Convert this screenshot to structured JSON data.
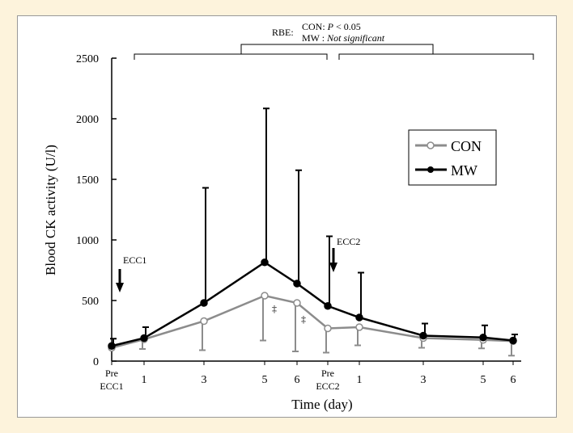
{
  "chart_data": {
    "type": "line",
    "title": "",
    "xlabel": "Time (day)",
    "ylabel": "Blood CK activity (U/l)",
    "ylim": [
      0,
      2500
    ],
    "yticks": [
      0,
      500,
      1000,
      1500,
      2000,
      2500
    ],
    "xticks": [
      {
        "line1": "Pre",
        "line2": "ECC1"
      },
      {
        "line1": "1",
        "line2": ""
      },
      {
        "line1": "3",
        "line2": ""
      },
      {
        "line1": "5",
        "line2": ""
      },
      {
        "line1": "6",
        "line2": ""
      },
      {
        "line1": "Pre",
        "line2": "ECC2"
      },
      {
        "line1": "1",
        "line2": ""
      },
      {
        "line1": "3",
        "line2": ""
      },
      {
        "line1": "5",
        "line2": ""
      },
      {
        "line1": "6",
        "line2": ""
      }
    ],
    "series": [
      {
        "name": "CON",
        "color": "#8c8c8c",
        "marker": "open-circle",
        "values": [
          110,
          180,
          330,
          540,
          480,
          270,
          280,
          190,
          175,
          165
        ],
        "error": [
          0,
          80,
          240,
          370,
          400,
          200,
          150,
          80,
          70,
          120
        ],
        "error_dir": [
          "up",
          "down",
          "down",
          "down",
          "down",
          "down",
          "down",
          "down",
          "down",
          "down"
        ]
      },
      {
        "name": "MW",
        "color": "#000000",
        "marker": "filled-circle",
        "values": [
          125,
          190,
          480,
          815,
          640,
          455,
          360,
          210,
          195,
          170
        ],
        "error": [
          60,
          90,
          950,
          1270,
          935,
          575,
          370,
          100,
          100,
          50
        ],
        "error_dir": [
          "up",
          "up",
          "up",
          "up",
          "up",
          "up",
          "up",
          "up",
          "up",
          "up"
        ]
      }
    ],
    "annotations": {
      "ecc1": "ECC1",
      "ecc2": "ECC2",
      "rbe_label": "RBE:",
      "rbe_con": "CON: P < 0.05",
      "rbe_mw": "MW : Not significant",
      "sig_mark_1": "‡",
      "sig_mark_2": "‡"
    },
    "legend": {
      "position": "right"
    }
  }
}
